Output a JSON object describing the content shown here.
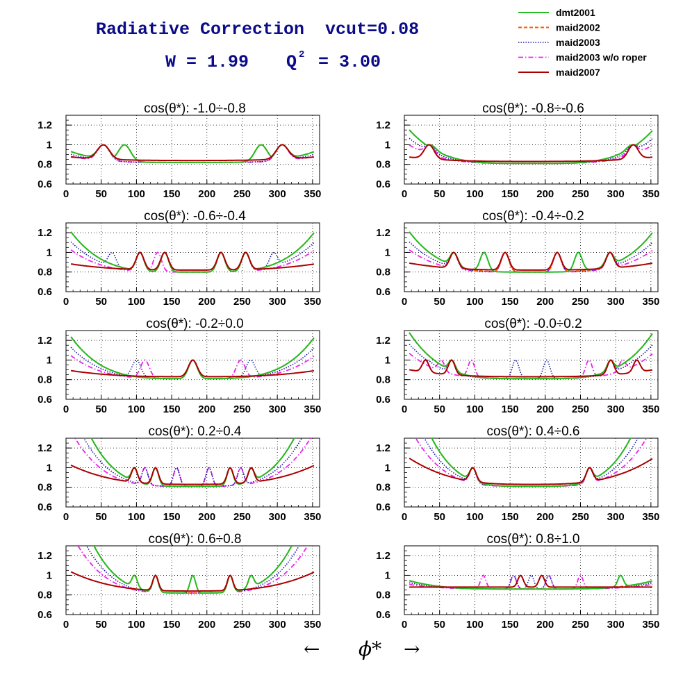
{
  "header": {
    "title": "Radiative Correction  vcut=0.08",
    "kin_w": "W = 1.99",
    "kin_q2_prefix": "Q",
    "kin_q2_sup": "2",
    "kin_q2_value": "= 3.00",
    "title_color": "#0b0b8a"
  },
  "xaxis_label": {
    "left_arrow": "←",
    "symbol": "ϕ*",
    "right_arrow": "→"
  },
  "legend": [
    {
      "name": "dmt2001",
      "color": "#22bb22",
      "dash": "solid"
    },
    {
      "name": "maid2002",
      "color": "#ff5500",
      "dash": "dashed"
    },
    {
      "name": "maid2003",
      "color": "#1a1aa6",
      "dash": "dotted"
    },
    {
      "name": "maid2003 w/o roper",
      "color": "#ee22ee",
      "dash": "dashdot"
    },
    {
      "name": "maid2007",
      "color": "#aa0000",
      "dash": "solid"
    }
  ],
  "chart_data": {
    "type": "line",
    "xlim": [
      0,
      360
    ],
    "ylim": [
      0.6,
      1.3
    ],
    "xticks": [
      "0",
      "50",
      "100",
      "150",
      "200",
      "250",
      "300",
      "350"
    ],
    "yticks": [
      "0.6",
      "0.8",
      "1",
      "1.2"
    ],
    "grid": true,
    "panels": [
      {
        "title": "cos(θ*): -1.0÷-0.8",
        "model": {
          "base": 0.82,
          "bowl": 0.13,
          "width": 22,
          "roperMidDelta": 0.0,
          "dipOffset": 0,
          "e7": 0.04
        },
        "peaks": {
          "green": [
            53,
            83,
            277,
            307
          ],
          "orange": [
            53,
            83,
            277,
            307
          ],
          "blue": [
            53,
            307
          ],
          "magenta": [
            53,
            307
          ],
          "red": [
            53,
            307
          ]
        }
      },
      {
        "title": "cos(θ*): -0.8÷-0.6",
        "model": {
          "base": 0.81,
          "bowl": 0.4,
          "width": 18,
          "roperMidDelta": -0.05,
          "dipOffset": 0,
          "e7": 0.05
        },
        "peaks": {
          "green": [
            35,
            325
          ],
          "orange": [
            35,
            325
          ],
          "blue": [
            35,
            325
          ],
          "magenta": [
            35,
            325
          ],
          "red": [
            35,
            325
          ]
        }
      },
      {
        "title": "cos(θ*): -0.6÷-0.4",
        "model": {
          "base": 0.8,
          "bowl": 0.48,
          "width": 14,
          "roperMidDelta": -0.2,
          "dipOffset": 0,
          "e7": 0.07
        },
        "peaks": {
          "green": [
            105,
            140,
            220,
            255
          ],
          "orange": [
            105,
            140,
            220,
            255
          ],
          "blue": [
            65,
            105,
            140,
            220,
            255,
            295
          ],
          "magenta": [
            105,
            130,
            220,
            255
          ],
          "red": [
            105,
            140,
            220,
            255
          ]
        }
      },
      {
        "title": "cos(θ*): -0.4÷-0.2",
        "model": {
          "base": 0.8,
          "bowl": 0.48,
          "width": 14,
          "roperMidDelta": -0.12,
          "dipOffset": 0,
          "e7": 0.08
        },
        "peaks": {
          "green": [
            70,
            113,
            247,
            292
          ],
          "orange": [
            70,
            143,
            217,
            292
          ],
          "blue": [
            70,
            143,
            217,
            292
          ],
          "magenta": [
            70,
            143,
            217,
            292
          ],
          "red": [
            70,
            143,
            217,
            292
          ]
        }
      },
      {
        "title": "cos(θ*): -0.2÷0.0",
        "model": {
          "base": 0.81,
          "bowl": 0.5,
          "width": 16,
          "roperMidDelta": -0.12,
          "dipOffset": 0,
          "e7": 0.07
        },
        "peaks": {
          "green": [
            180
          ],
          "orange": [
            180
          ],
          "blue": [
            100,
            180,
            262
          ],
          "magenta": [
            112,
            180,
            248
          ],
          "red": [
            180
          ]
        }
      },
      {
        "title": "cos(θ*): -0.0÷0.2",
        "model": {
          "base": 0.81,
          "bowl": 0.55,
          "width": 12,
          "roperMidDelta": -0.05,
          "dipOffset": 0,
          "e7": 0.08
        },
        "peaks": {
          "green": [
            30,
            67,
            293,
            330
          ],
          "orange": [
            30,
            67,
            293,
            330
          ],
          "blue": [
            30,
            67,
            158,
            202,
            293,
            330
          ],
          "magenta": [
            52,
            95,
            262,
            310
          ],
          "red": [
            30,
            67,
            293,
            330
          ]
        }
      },
      {
        "title": "cos(θ*): 0.2÷0.4",
        "model": {
          "base": 0.81,
          "bowl": 1.2,
          "width": 11,
          "roperMidDelta": -0.03,
          "dipOffset": 0,
          "e7": 0.22
        },
        "peaks": {
          "green": [
            97,
            127,
            233,
            263
          ],
          "orange": [
            97,
            127,
            233,
            263
          ],
          "blue": [
            112,
            157,
            203,
            248
          ],
          "magenta": [
            112,
            157,
            203,
            248
          ],
          "red": [
            97,
            127,
            233,
            263
          ]
        }
      },
      {
        "title": "cos(θ*): 0.4÷0.6",
        "model": {
          "base": 0.81,
          "bowl": 1.3,
          "width": 12,
          "roperMidDelta": -0.03,
          "dipOffset": 0,
          "e7": 0.3
        },
        "peaks": {
          "green": [
            97,
            263
          ],
          "orange": [
            97,
            263
          ],
          "blue": [
            97,
            263
          ],
          "magenta": [
            97,
            263
          ],
          "red": [
            97,
            263
          ]
        }
      },
      {
        "title": "cos(θ*): 0.6÷0.8",
        "model": {
          "base": 0.82,
          "bowl": 1.3,
          "width": 10,
          "roperMidDelta": -0.02,
          "dipOffset": 0,
          "e7": 0.22
        },
        "peaks": {
          "green": [
            97,
            127,
            180,
            233,
            263
          ],
          "orange": [
            97,
            127,
            233,
            263
          ],
          "blue": [
            127,
            233
          ],
          "magenta": [
            127,
            233
          ],
          "red": [
            127,
            233
          ]
        }
      },
      {
        "title": "cos(θ*): 0.8÷1.0",
        "model": {
          "base": 0.86,
          "bowl": 0.1,
          "width": 10,
          "roperMidDelta": -0.03,
          "dipOffset": 0,
          "e7": 0.0
        },
        "peaks": {
          "green": [
            307
          ],
          "orange": [],
          "blue": [
            155,
            180,
            205
          ],
          "magenta": [
            112,
            155,
            205,
            250
          ],
          "red": [
            165,
            195
          ]
        }
      }
    ]
  }
}
